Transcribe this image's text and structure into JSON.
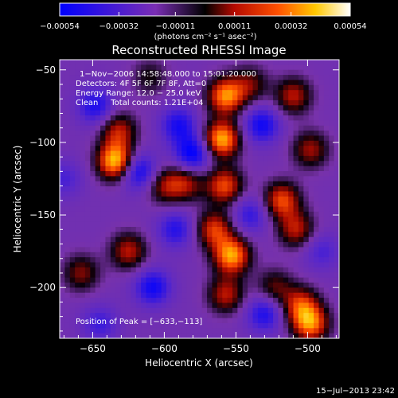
{
  "chart_data": {
    "type": "heatmap",
    "title": "Reconstructed RHESSI Image",
    "xlabel": "Heliocentric X (arcsec)",
    "ylabel": "Heliocentric Y (arcsec)",
    "xlim": [
      -673,
      -478
    ],
    "ylim": [
      -235,
      -43
    ],
    "x_ticks": [
      -650,
      -600,
      -550,
      -500
    ],
    "y_ticks": [
      -50,
      -100,
      -150,
      -200
    ],
    "x_tick_labels": [
      "−650",
      "−600",
      "−550",
      "−500"
    ],
    "y_tick_labels": [
      "−50",
      "−100",
      "−150",
      "−200"
    ],
    "colorbar": {
      "range": [
        -0.00054,
        0.00054
      ],
      "tick_values": [
        -0.00054,
        -0.00032,
        -0.00011,
        0.00011,
        0.00032,
        0.00054
      ],
      "tick_labels": [
        "−0.00054",
        "−0.00032",
        "−0.00011",
        "0.00011",
        "0.00032",
        "0.00054"
      ],
      "units": "(photons cm⁻² s⁻¹ asec⁻²)",
      "colors": [
        "#0000ff",
        "#6a2ea8",
        "#000000",
        "#cc1e00",
        "#ffb400",
        "#ffffff"
      ]
    },
    "annotations": [
      "1−Nov−2006 14:58:48.000 to 15:01:20.000",
      "Detectors: 4F 5F 6F 7F 8F, Att=0",
      "Energy Range: 12.0 − 25.0 keV",
      "Clean     Total counts: 1.21E+04"
    ],
    "peak_label": "Position of Peak = [−633,−113]",
    "grid": false,
    "blobs": [
      {
        "x": -634,
        "y": -113,
        "v": 1.0
      },
      {
        "x": -632,
        "y": -92,
        "v": 0.55
      },
      {
        "x": -625,
        "y": -175,
        "v": 0.55
      },
      {
        "x": -658,
        "y": -190,
        "v": 0.45
      },
      {
        "x": -560,
        "y": -98,
        "v": 0.95
      },
      {
        "x": -557,
        "y": -68,
        "v": 0.85
      },
      {
        "x": -558,
        "y": -130,
        "v": 0.7
      },
      {
        "x": -565,
        "y": -160,
        "v": 0.65
      },
      {
        "x": -553,
        "y": -178,
        "v": 0.9
      },
      {
        "x": -557,
        "y": -205,
        "v": 0.55
      },
      {
        "x": -585,
        "y": -128,
        "v": 0.5
      },
      {
        "x": -600,
        "y": -130,
        "v": 0.45
      },
      {
        "x": -510,
        "y": -68,
        "v": 0.55
      },
      {
        "x": -498,
        "y": -105,
        "v": 0.5
      },
      {
        "x": -518,
        "y": -140,
        "v": 0.7
      },
      {
        "x": -508,
        "y": -160,
        "v": 0.55
      },
      {
        "x": -523,
        "y": -200,
        "v": 0.4
      },
      {
        "x": -505,
        "y": -212,
        "v": 0.6
      },
      {
        "x": -498,
        "y": -225,
        "v": 0.8
      },
      {
        "x": -540,
        "y": -60,
        "v": 0.4
      },
      {
        "x": -610,
        "y": -55,
        "v": 0.3
      },
      {
        "x": -648,
        "y": -75,
        "v": -0.5
      },
      {
        "x": -618,
        "y": -120,
        "v": -0.6
      },
      {
        "x": -670,
        "y": -125,
        "v": -0.3
      },
      {
        "x": -608,
        "y": -200,
        "v": -0.55
      },
      {
        "x": -580,
        "y": -108,
        "v": -0.65
      },
      {
        "x": -590,
        "y": -88,
        "v": -0.5
      },
      {
        "x": -592,
        "y": -160,
        "v": -0.45
      },
      {
        "x": -540,
        "y": -150,
        "v": -0.4
      },
      {
        "x": -532,
        "y": -88,
        "v": -0.55
      },
      {
        "x": -530,
        "y": -218,
        "v": -0.5
      },
      {
        "x": -490,
        "y": -175,
        "v": -0.3
      },
      {
        "x": -645,
        "y": -225,
        "v": -0.35
      }
    ]
  },
  "footer": {
    "timestamp": "15−Jul−2013 23:42"
  }
}
